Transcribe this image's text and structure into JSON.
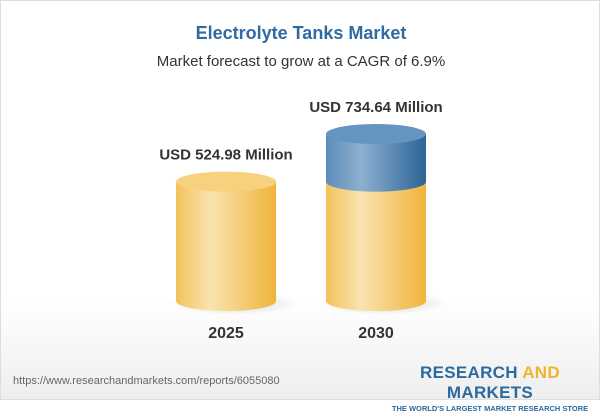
{
  "chart_data": {
    "type": "bar",
    "style": "3d-cylinder",
    "title": "Electrolyte Tanks Market",
    "subtitle": "Market forecast to grow at a CAGR of 6.9%",
    "categories": [
      "2025",
      "2030"
    ],
    "values": [
      524.98,
      734.64
    ],
    "data_labels": [
      "USD 524.98 Million",
      "USD 734.64 Million"
    ],
    "unit": "USD Million",
    "colors": {
      "base": "#f3c55e",
      "growth": "#5b8fbb"
    }
  },
  "footer": {
    "url": "https://www.researchandmarkets.com/reports/6055080",
    "logo_part1": "RESEARCH ",
    "logo_part2": "AND",
    "logo_part3": " MARKETS",
    "tagline": "THE WORLD'S LARGEST MARKET RESEARCH STORE"
  }
}
